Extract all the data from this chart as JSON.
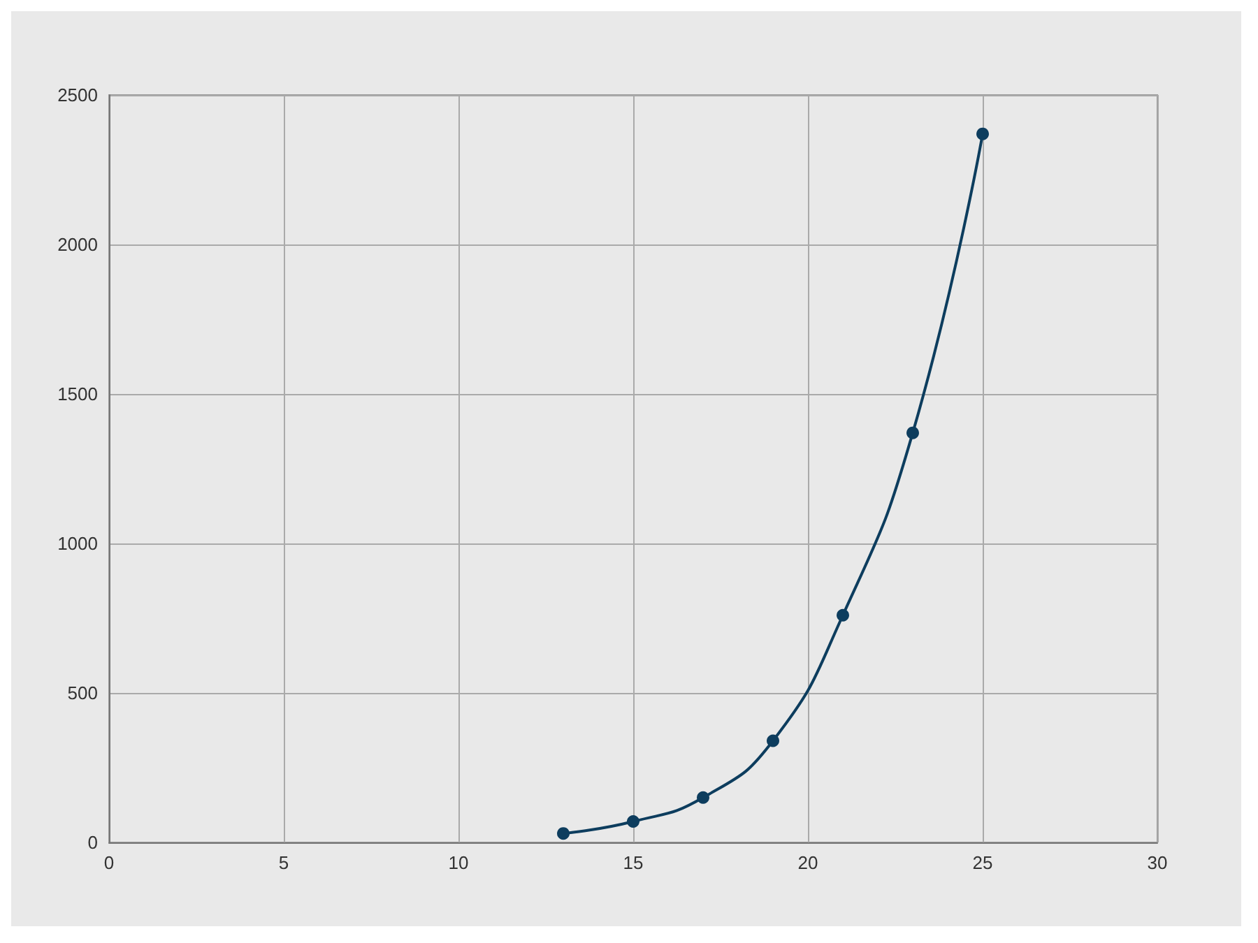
{
  "chart_data": {
    "type": "line",
    "x": [
      13,
      15,
      17,
      19,
      21,
      23,
      25
    ],
    "series": [
      {
        "color": "#0d3d5e",
        "values": [
          30,
          70,
          150,
          340,
          760,
          1370,
          2370
        ]
      }
    ],
    "xlim": [
      0,
      30
    ],
    "xticks": [
      0,
      5,
      10,
      15,
      20,
      25,
      30
    ],
    "ylim": [
      0,
      2500
    ],
    "yticks": [
      0,
      500,
      1000,
      1500,
      2000,
      2500
    ],
    "grid": true,
    "marker": "circle",
    "line_style": "solid"
  }
}
